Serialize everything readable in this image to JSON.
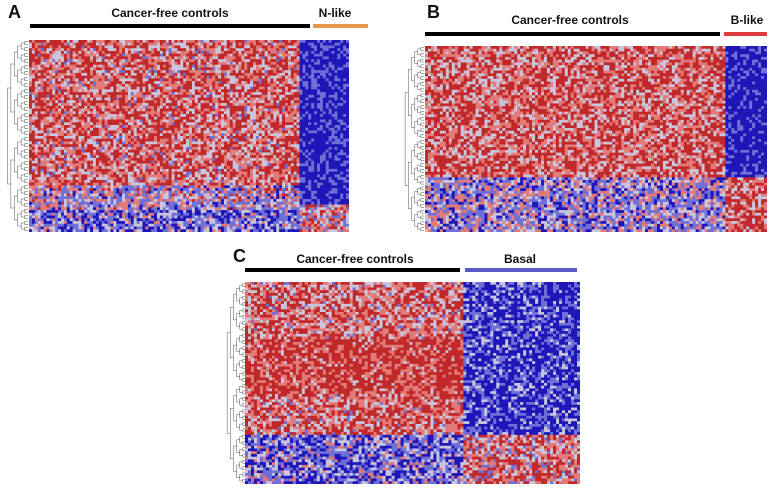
{
  "panels": [
    {
      "letter": "A",
      "groups": [
        {
          "label": "Cancer-free controls",
          "color": "#000000"
        },
        {
          "label": "N-like",
          "color": "#e8954f"
        }
      ],
      "pattern": "N-like"
    },
    {
      "letter": "B",
      "groups": [
        {
          "label": "Cancer-free controls",
          "color": "#000000"
        },
        {
          "label": "B-like",
          "color": "#e23b3b"
        }
      ],
      "pattern": "B-like"
    },
    {
      "letter": "C",
      "groups": [
        {
          "label": "Cancer-free controls",
          "color": "#000000"
        },
        {
          "label": "Basal",
          "color": "#5a5ac8"
        }
      ],
      "pattern": "Basal"
    }
  ],
  "colors": {
    "high": "#c0282a",
    "mid_high": "#e27a78",
    "neutral": "#c9c5dc",
    "mid_low": "#6f6fd8",
    "low": "#1f16b8"
  }
}
